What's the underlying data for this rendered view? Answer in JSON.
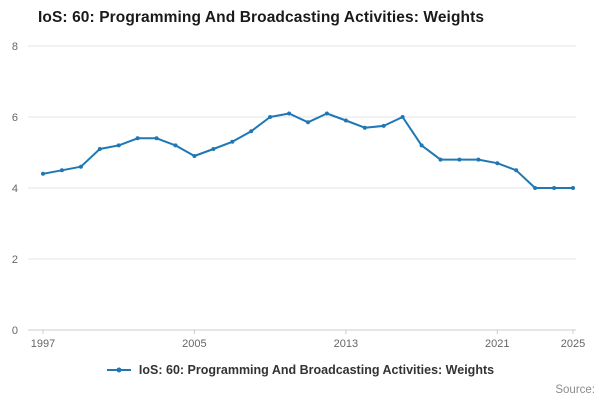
{
  "title": "IoS: 60: Programming And Broadcasting Activities: Weights",
  "legend": {
    "label": "IoS: 60: Programming And Broadcasting Activities: Weights"
  },
  "source": "Source:",
  "colors": {
    "line": "#1f77b4",
    "grid": "#e6e6e6",
    "axis_line": "#cccccc",
    "axis_text": "#666666"
  },
  "chart_data": {
    "type": "line",
    "title": "IoS: 60: Programming And Broadcasting Activities: Weights",
    "xlabel": "",
    "ylabel": "",
    "ylim": [
      0,
      8
    ],
    "yticks": [
      0,
      2,
      4,
      6,
      8
    ],
    "xticks": [
      1997,
      2005,
      2013,
      2021,
      2025
    ],
    "grid": true,
    "legend_position": "bottom",
    "marker": "circle",
    "x": [
      1997,
      1998,
      1999,
      2000,
      2001,
      2002,
      2003,
      2004,
      2005,
      2006,
      2007,
      2008,
      2009,
      2010,
      2011,
      2012,
      2013,
      2014,
      2015,
      2016,
      2017,
      2018,
      2019,
      2020,
      2021,
      2022,
      2023,
      2024,
      2025
    ],
    "series": [
      {
        "name": "IoS: 60: Programming And Broadcasting Activities: Weights",
        "values": [
          4.4,
          4.5,
          4.6,
          5.1,
          5.2,
          5.4,
          5.4,
          5.2,
          4.9,
          5.1,
          5.3,
          5.6,
          6.0,
          6.1,
          5.85,
          6.1,
          5.9,
          5.7,
          5.75,
          6.0,
          5.2,
          4.8,
          4.8,
          4.8,
          4.7,
          4.5,
          4.0,
          4.0,
          4.0
        ]
      }
    ]
  }
}
